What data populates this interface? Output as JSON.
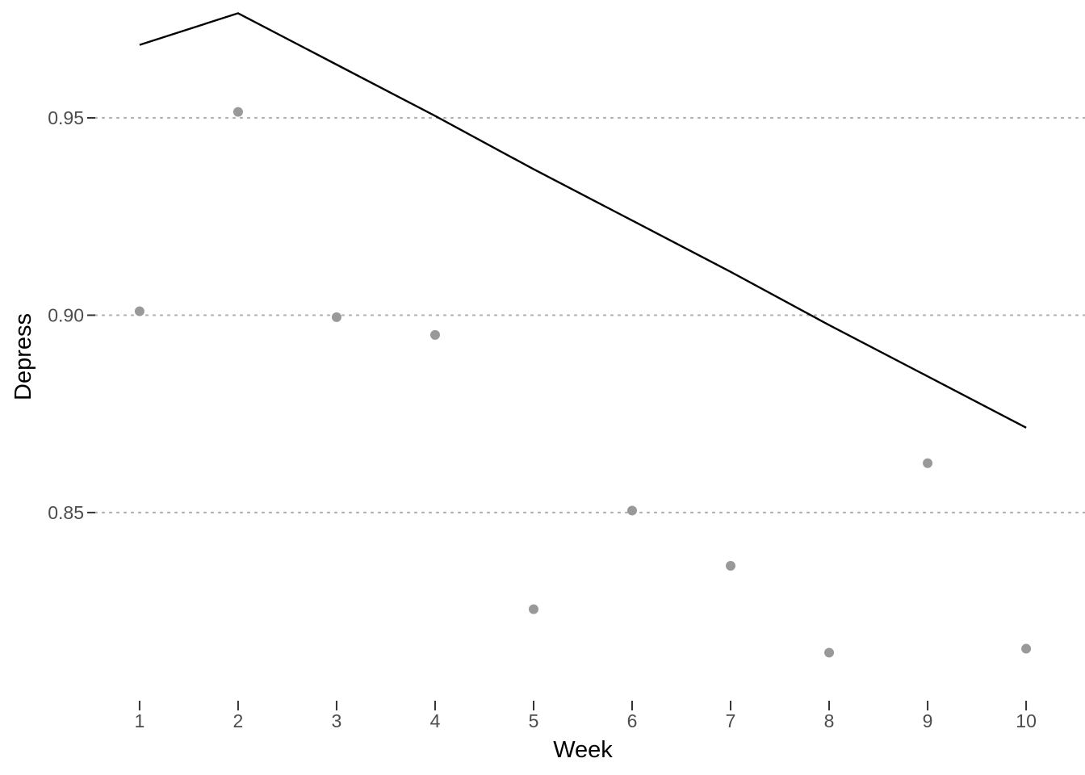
{
  "chart_data": {
    "type": "scatter",
    "xlabel": "Week",
    "ylabel": "Depress",
    "x_ticks": [
      1,
      2,
      3,
      4,
      5,
      6,
      7,
      8,
      9,
      10
    ],
    "y_ticks": [
      "0.85",
      "0.90",
      "0.95"
    ],
    "xlim": [
      0.55,
      10.45
    ],
    "ylim": [
      0.806,
      0.977
    ],
    "grid": "horizontal-dotted",
    "series": [
      {
        "kind": "points",
        "color": "#999999",
        "x": [
          1,
          2,
          3,
          4,
          5,
          6,
          7,
          8,
          9,
          10
        ],
        "y": [
          0.901,
          0.9515,
          0.8995,
          0.895,
          0.8255,
          0.8505,
          0.8365,
          0.8145,
          0.8625,
          0.8155
        ]
      },
      {
        "kind": "line",
        "color": "#000000",
        "x": [
          1,
          2,
          3,
          4,
          5,
          6,
          7,
          8,
          9,
          10
        ],
        "y": [
          0.9685,
          0.9765,
          0.9635,
          0.9505,
          0.937,
          0.924,
          0.911,
          0.8975,
          0.8845,
          0.8715
        ]
      }
    ]
  }
}
